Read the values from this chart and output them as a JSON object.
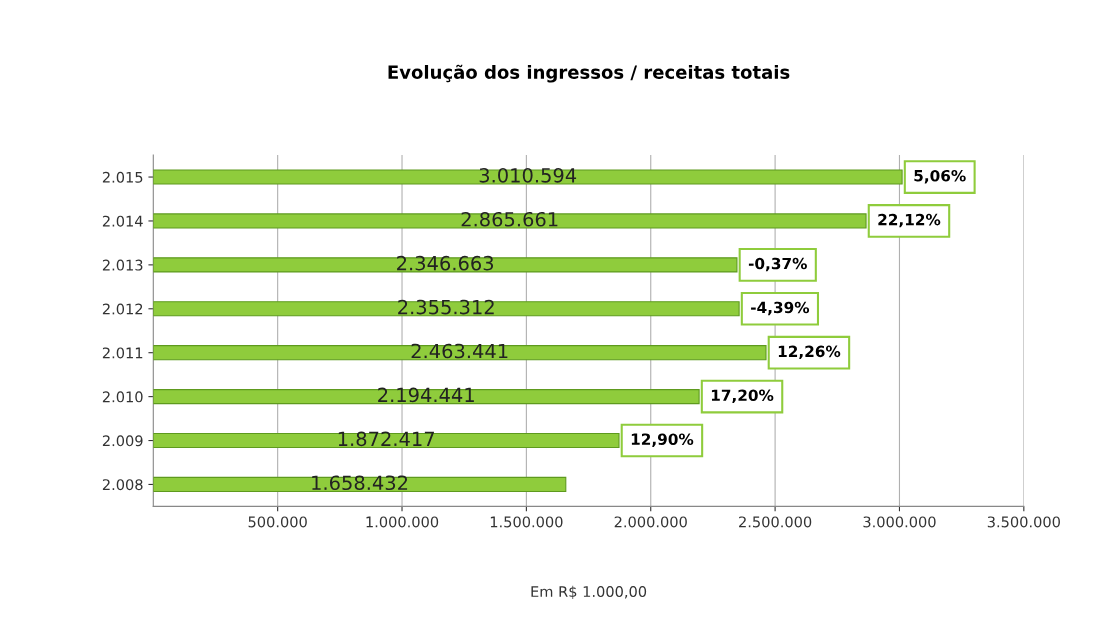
{
  "chart_data": {
    "type": "bar",
    "orientation": "horizontal",
    "title": "Evolução dos ingressos / receitas totais",
    "xlabel": "Em R$ 1.000,00",
    "categories": [
      "2.015",
      "2.014",
      "2.013",
      "2.012",
      "2.011",
      "2.010",
      "2.009",
      "2.008"
    ],
    "values": [
      3010594,
      2865661,
      2346663,
      2355312,
      2463441,
      2194441,
      1872417,
      1658432
    ],
    "value_labels": [
      "3.010.594",
      "2.865.661",
      "2.346.663",
      "2.355.312",
      "2.463.441",
      "2.194.441",
      "1.872.417",
      "1.658.432"
    ],
    "color": "#8fcc3c",
    "xlim": [
      0,
      3500000
    ],
    "xticks": [
      {
        "value": 500000,
        "label": "500.000"
      },
      {
        "value": 1000000,
        "label": "1.000.000"
      },
      {
        "value": 1500000,
        "label": "1.500.000"
      },
      {
        "value": 2000000,
        "label": "2.000.000"
      },
      {
        "value": 2500000,
        "label": "2.500.000"
      },
      {
        "value": 3000000,
        "label": "3.000.000"
      },
      {
        "value": 3500000,
        "label": "3.500.000"
      }
    ],
    "grid": "x",
    "annotations": [
      {
        "text": "5,06%",
        "x": 3010594,
        "y": "2.015"
      },
      {
        "text": "22,12%",
        "x": 2865661,
        "y": "2.014"
      },
      {
        "text": "-0,37%",
        "x": 2346663,
        "y": "2.013"
      },
      {
        "text": "-4,39%",
        "x": 2355312,
        "y": "2.012"
      },
      {
        "text": "12,26%",
        "x": 2463441,
        "y": "2.011"
      },
      {
        "text": "17,20%",
        "x": 2194441,
        "y": "2.010"
      },
      {
        "text": "12,90%",
        "x": 1872417,
        "y": "2.009"
      }
    ]
  }
}
